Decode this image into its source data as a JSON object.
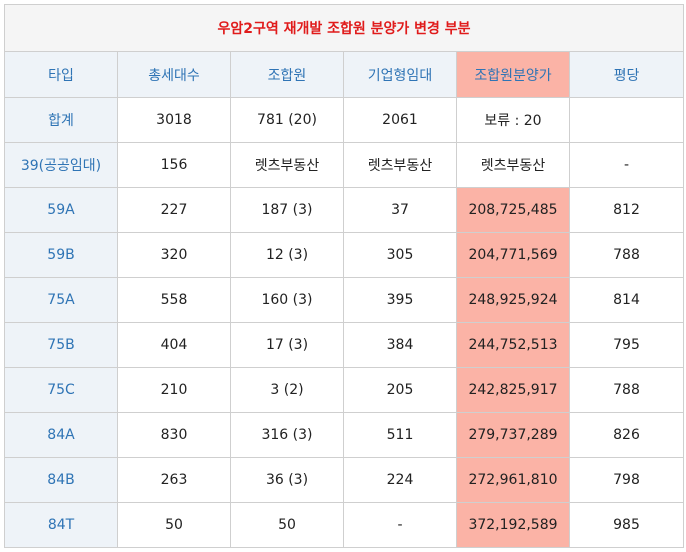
{
  "title": "우암2구역 재개발 조합원 분양가 변경 부분",
  "headers": [
    "타입",
    "총세대수",
    "조합원",
    "기업형임대",
    "조합원분양가",
    "평당"
  ],
  "colors": {
    "title": "#e01b1b",
    "header_text": "#2f74b5",
    "header_bg": "#eef3f8",
    "highlight": "#fbb3a6"
  },
  "rows": [
    {
      "type": "합계",
      "total": "3018",
      "member": "781 (20)",
      "rental": "2061",
      "price": "보류 : 20",
      "per_pyeong": "",
      "price_highlight": false
    },
    {
      "type": "39(공공임대)",
      "total": "156",
      "member": "렛츠부동산",
      "rental": "렛츠부동산",
      "price": "렛츠부동산",
      "per_pyeong": "-",
      "price_highlight": false
    },
    {
      "type": "59A",
      "total": "227",
      "member": "187 (3)",
      "rental": "37",
      "price": "208,725,485",
      "per_pyeong": "812",
      "price_highlight": true
    },
    {
      "type": "59B",
      "total": "320",
      "member": "12 (3)",
      "rental": "305",
      "price": "204,771,569",
      "per_pyeong": "788",
      "price_highlight": true
    },
    {
      "type": "75A",
      "total": "558",
      "member": "160 (3)",
      "rental": "395",
      "price": "248,925,924",
      "per_pyeong": "814",
      "price_highlight": true
    },
    {
      "type": "75B",
      "total": "404",
      "member": "17 (3)",
      "rental": "384",
      "price": "244,752,513",
      "per_pyeong": "795",
      "price_highlight": true
    },
    {
      "type": "75C",
      "total": "210",
      "member": "3 (2)",
      "rental": "205",
      "price": "242,825,917",
      "per_pyeong": "788",
      "price_highlight": true
    },
    {
      "type": "84A",
      "total": "830",
      "member": "316 (3)",
      "rental": "511",
      "price": "279,737,289",
      "per_pyeong": "826",
      "price_highlight": true
    },
    {
      "type": "84B",
      "total": "263",
      "member": "36 (3)",
      "rental": "224",
      "price": "272,961,810",
      "per_pyeong": "798",
      "price_highlight": true
    },
    {
      "type": "84T",
      "total": "50",
      "member": "50",
      "rental": "-",
      "price": "372,192,589",
      "per_pyeong": "985",
      "price_highlight": true
    }
  ]
}
